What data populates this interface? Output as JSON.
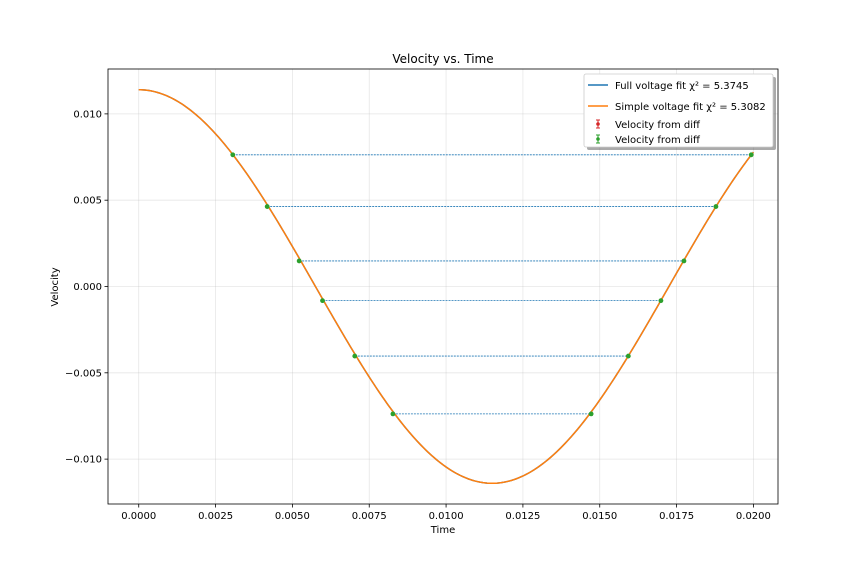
{
  "chart_data": {
    "type": "line",
    "title": "Velocity vs. Time",
    "xlabel": "Time",
    "ylabel": "Velocity",
    "xlim": [
      -0.001,
      0.0208
    ],
    "ylim": [
      -0.0126,
      0.0126
    ],
    "xticks": [
      0.0,
      0.0025,
      0.005,
      0.0075,
      0.01,
      0.0125,
      0.015,
      0.0175,
      0.02
    ],
    "xtick_labels": [
      "0.0000",
      "0.0025",
      "0.0050",
      "0.0075",
      "0.0100",
      "0.0125",
      "0.0150",
      "0.0175",
      "0.0200"
    ],
    "yticks": [
      -0.01,
      -0.005,
      0.0,
      0.005,
      0.01
    ],
    "ytick_labels": [
      "−0.010",
      "−0.005",
      "0.000",
      "0.005",
      "0.010"
    ],
    "grid": true,
    "legend_position": "top-right",
    "model": {
      "amplitude": 0.0114,
      "period": 0.023,
      "x_start": 0.0,
      "x_end": 0.02
    },
    "series": [
      {
        "name": "Full voltage fit χ² = 5.3745",
        "color": "#1f77b4",
        "style": "line"
      },
      {
        "name": "Simple voltage fit χ² = 5.3082",
        "color": "#ff7f0e",
        "style": "line"
      },
      {
        "name": "Velocity from diff",
        "color": "#d62728",
        "style": "errorbar",
        "points": []
      },
      {
        "name": "Velocity from diff",
        "color": "#2ca02c",
        "style": "errorbar",
        "points": []
      }
    ],
    "points": [
      {
        "x": 0.00306,
        "y": 0.00763
      },
      {
        "x": 0.00418,
        "y": 0.00463
      },
      {
        "x": 0.00522,
        "y": 0.00148
      },
      {
        "x": 0.00598,
        "y": -0.00082
      },
      {
        "x": 0.00703,
        "y": -0.00403
      },
      {
        "x": 0.00827,
        "y": -0.00738
      },
      {
        "x": 0.01472,
        "y": -0.00738
      },
      {
        "x": 0.01593,
        "y": -0.00403
      },
      {
        "x": 0.01699,
        "y": -0.00082
      },
      {
        "x": 0.01774,
        "y": 0.00148
      },
      {
        "x": 0.01878,
        "y": 0.00463
      },
      {
        "x": 0.01993,
        "y": 0.00763
      }
    ],
    "pairs": [
      [
        0,
        11
      ],
      [
        1,
        10
      ],
      [
        2,
        9
      ],
      [
        3,
        8
      ],
      [
        4,
        7
      ],
      [
        5,
        6
      ]
    ],
    "pair_line_color": "#1f77b4",
    "marker_color": "#2ca02c"
  }
}
